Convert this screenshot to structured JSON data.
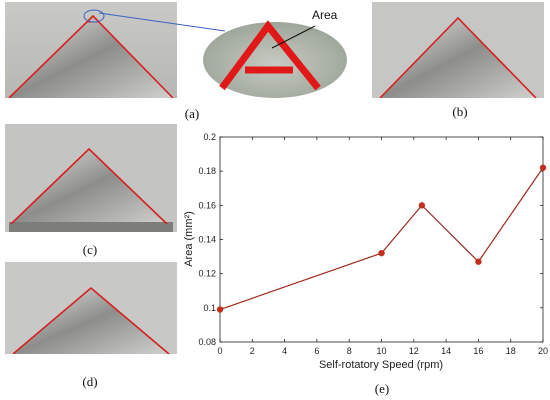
{
  "panels": {
    "a": "(a)",
    "b": "(b)",
    "c": "(c)",
    "d": "(d)",
    "e": "(e)"
  },
  "zoom_annotation": "Area",
  "colors": {
    "outline": "#d62020",
    "series": "#a0281c",
    "marker": "#c1301e"
  },
  "chart_data": {
    "type": "line",
    "xlabel": "Self-rotatory Speed (rpm)",
    "ylabel": "Area (mm²)",
    "xlim": [
      0,
      20
    ],
    "ylim": [
      0.08,
      0.2
    ],
    "xticks": [
      "0",
      "2",
      "4",
      "6",
      "8",
      "10",
      "12",
      "14",
      "16",
      "18",
      "20"
    ],
    "yticks": [
      "0.08",
      "0.1",
      "0.12",
      "0.14",
      "0.16",
      "0.18",
      "0.2"
    ],
    "grid": false,
    "series": [
      {
        "x": [
          0,
          10,
          12.5,
          16,
          20
        ],
        "y": [
          0.099,
          0.132,
          0.16,
          0.127,
          0.182
        ]
      }
    ]
  }
}
